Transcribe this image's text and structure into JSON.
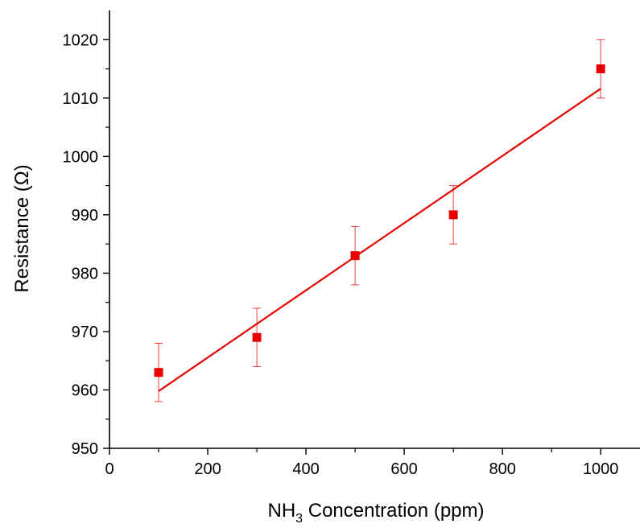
{
  "chart_data": {
    "type": "scatter",
    "xlabel_main": "NH",
    "xlabel_sub": "3",
    "xlabel_rest": " Concentration (ppm)",
    "ylabel": "Resistance (Ω)",
    "xlim": [
      0,
      1080
    ],
    "ylim": [
      950,
      1025
    ],
    "x_ticks": [
      0,
      200,
      400,
      600,
      800,
      1000
    ],
    "y_ticks": [
      950,
      960,
      970,
      980,
      990,
      1000,
      1010,
      1020
    ],
    "grid": false,
    "series": [
      {
        "x": [
          100,
          300,
          500,
          700,
          1000
        ],
        "y": [
          963,
          969,
          983,
          990,
          1015
        ],
        "error": [
          5,
          5,
          5,
          5,
          5
        ],
        "color": "#e60000",
        "marker": "square"
      }
    ],
    "fit_line": {
      "x": [
        100,
        1000
      ],
      "y": [
        959.8,
        1011.6
      ],
      "color": "#e60000"
    }
  }
}
